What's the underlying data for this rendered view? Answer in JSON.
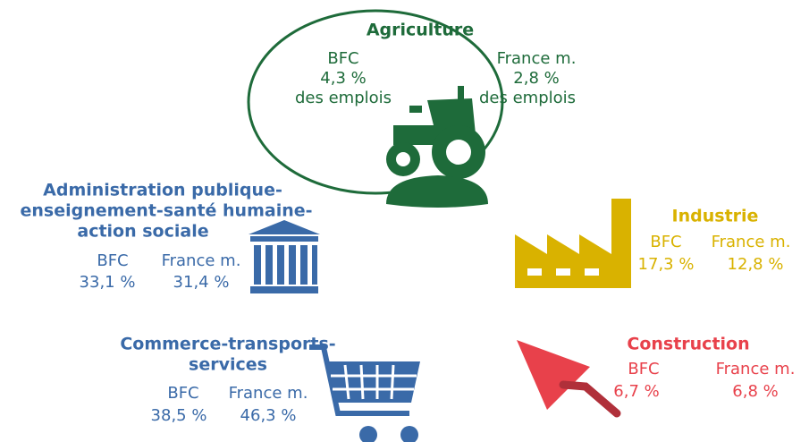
{
  "sectors": [
    {
      "name_lines": [
        "Agriculture"
      ],
      "bfc_label": "BFC",
      "bfc_value": "4,3 %",
      "bfc_note": "des emplois",
      "france_label": "France m.",
      "france_value": "2,8 %",
      "france_note": "des emplois"
    },
    {
      "name_lines": [
        "Administration publique-",
        "enseignement-santé humaine-",
        "action sociale"
      ],
      "bfc_label": "BFC",
      "bfc_value": "33,1 %",
      "france_label": "France m.",
      "france_value": "31,4 %"
    },
    {
      "name_lines": [
        "Industrie"
      ],
      "bfc_label": "BFC",
      "bfc_value": "17,3 %",
      "france_label": "France m.",
      "france_value": "12,8 %"
    },
    {
      "name_lines": [
        "Commerce-transports-",
        "services"
      ],
      "bfc_label": "BFC",
      "bfc_value": "38,5 %",
      "france_label": "France m.",
      "france_value": "46,3 %"
    },
    {
      "name_lines": [
        "Construction"
      ],
      "bfc_label": "BFC",
      "bfc_value": "6,7 %",
      "france_label": "France m.",
      "france_value": "6,8 %"
    }
  ]
}
